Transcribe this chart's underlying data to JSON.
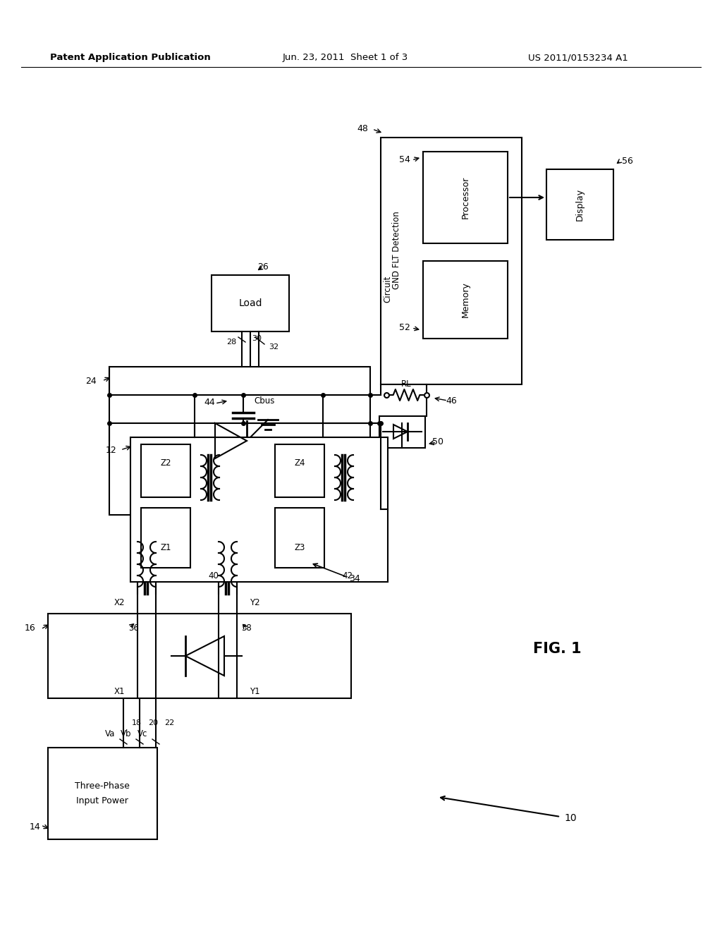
{
  "bg_color": "#ffffff",
  "header_left": "Patent Application Publication",
  "header_center": "Jun. 23, 2011  Sheet 1 of 3",
  "header_right": "US 2011/0153234 A1",
  "fig_label": "FIG. 1",
  "lw": 1.5
}
